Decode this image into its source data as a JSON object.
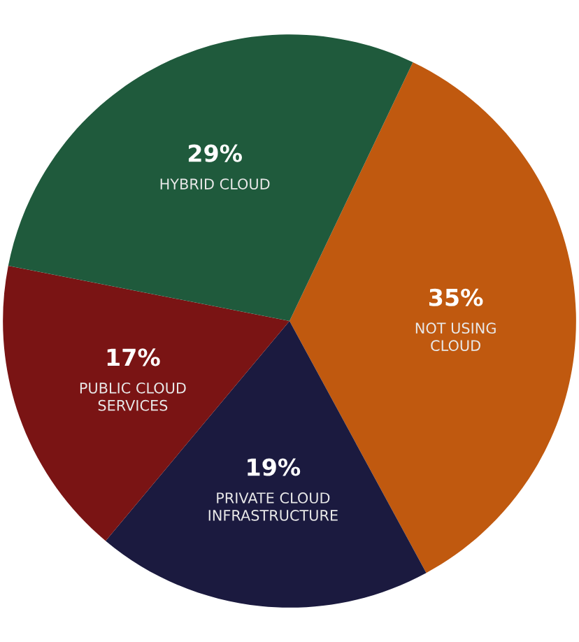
{
  "chart_data": {
    "type": "pie",
    "categories": [
      "NOT USING\nCLOUD",
      "PRIVATE CLOUD\nINFRASTRUCTURE",
      "PUBLIC CLOUD\nSERVICES",
      "HYBRID CLOUD"
    ],
    "values": [
      35,
      19,
      17,
      29
    ],
    "colors": [
      "#c0590f",
      "#1b1a3f",
      "#7a1414",
      "#1f5a3c"
    ],
    "value_labels": [
      "35%",
      "19%",
      "17%",
      "29%"
    ]
  }
}
